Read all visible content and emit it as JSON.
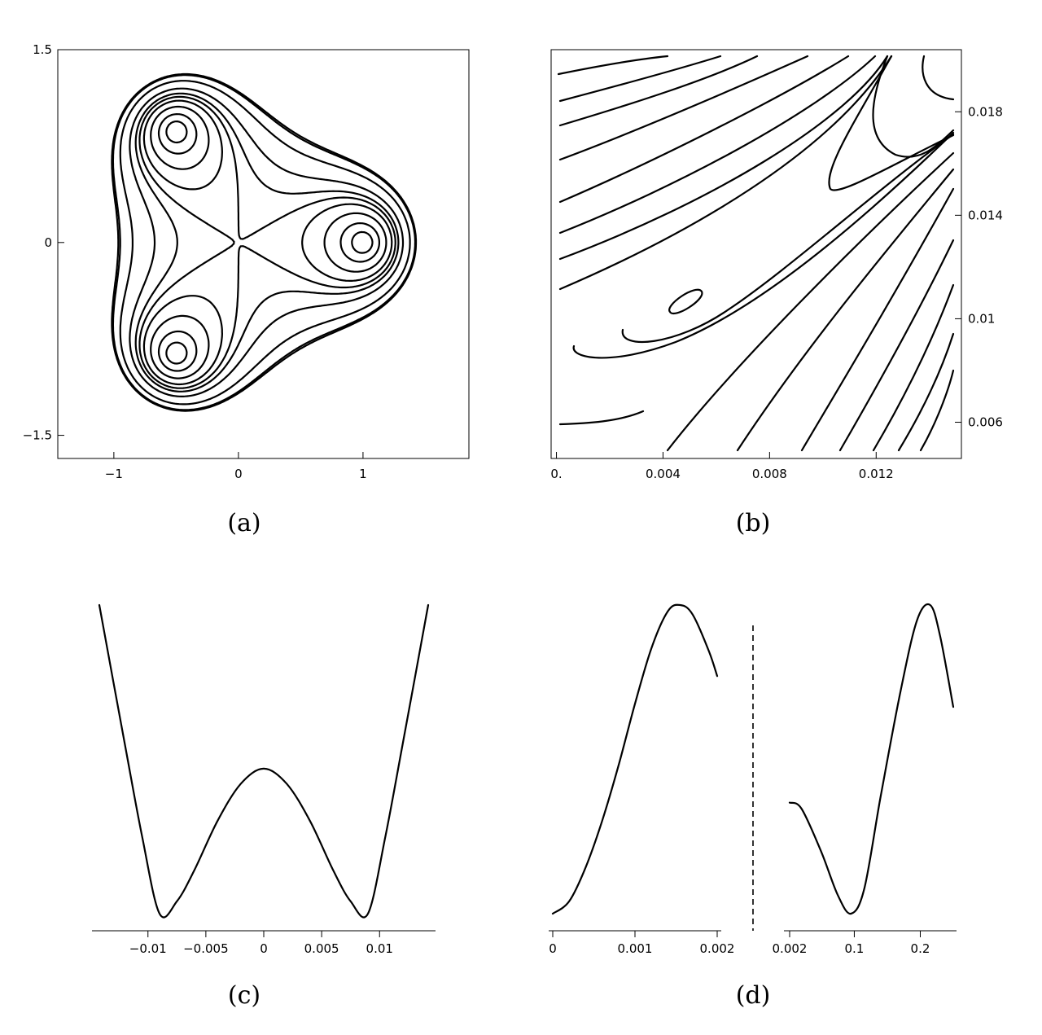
{
  "chart_data": [
    {
      "panel": "a",
      "type": "contour",
      "caption": "(a)",
      "xlim": [
        -1.45,
        1.85
      ],
      "ylim": [
        -1.68,
        1.5
      ],
      "xticks": [
        {
          "v": -1,
          "label": "−1"
        },
        {
          "v": 0,
          "label": "0"
        },
        {
          "v": 1,
          "label": "1"
        }
      ],
      "yticks": [
        {
          "v": -1.5,
          "label": "−1.5"
        },
        {
          "v": 0,
          "label": "0"
        },
        {
          "v": 1.5,
          "label": "1.5"
        }
      ],
      "grid": false,
      "minima": [
        [
          1,
          0
        ],
        [
          -0.5,
          0.866
        ],
        [
          -0.5,
          -0.866
        ]
      ],
      "description_level_count": 10
    },
    {
      "panel": "b",
      "type": "contour",
      "caption": "(b)",
      "xlim": [
        -0.0002,
        0.0152
      ],
      "ylim": [
        0.0046,
        0.0204
      ],
      "xticks": [
        {
          "v": 0,
          "label": "0."
        },
        {
          "v": 0.004,
          "label": "0.004"
        },
        {
          "v": 0.008,
          "label": "0.008"
        },
        {
          "v": 0.012,
          "label": "0.012"
        }
      ],
      "yticks": [
        {
          "v": 0.006,
          "label": "0.006"
        },
        {
          "v": 0.01,
          "label": "0.01"
        },
        {
          "v": 0.014,
          "label": "0.014"
        },
        {
          "v": 0.018,
          "label": "0.018"
        }
      ],
      "y_axis_side": "right",
      "grid": false
    },
    {
      "panel": "c",
      "type": "line",
      "caption": "(c)",
      "xlim": [
        -0.0142,
        0.0142
      ],
      "xticks": [
        {
          "v": -0.01,
          "label": "−0.01"
        },
        {
          "v": -0.005,
          "label": "−0.005"
        },
        {
          "v": 0,
          "label": "0"
        },
        {
          "v": 0.005,
          "label": "0.005"
        },
        {
          "v": 0.01,
          "label": "0.01"
        }
      ],
      "grid": false,
      "series": [
        {
          "x": [
            -0.0142,
            -0.012,
            -0.0105,
            -0.009,
            -0.0075,
            -0.006,
            -0.004,
            -0.002,
            0,
            0.002,
            0.004,
            0.006,
            0.0075,
            0.009,
            0.0105,
            0.012,
            0.0142
          ],
          "y": [
            1.0,
            0.55,
            0.25,
            0.0,
            0.04,
            0.14,
            0.3,
            0.42,
            0.47,
            0.42,
            0.3,
            0.14,
            0.04,
            0.0,
            0.25,
            0.55,
            1.0
          ]
        }
      ]
    },
    {
      "panel": "d-left",
      "type": "line",
      "caption": "(d)",
      "xlim": [
        0,
        0.002
      ],
      "xticks": [
        {
          "v": 0,
          "label": "0"
        },
        {
          "v": 0.001,
          "label": "0.001"
        },
        {
          "v": 0.002,
          "label": "0.002"
        }
      ],
      "grid": false,
      "series": [
        {
          "x": [
            0,
            0.0002,
            0.0004,
            0.0006,
            0.0008,
            0.001,
            0.0012,
            0.0014,
            0.00155,
            0.0017,
            0.0019,
            0.002
          ],
          "y": [
            0.0,
            0.04,
            0.15,
            0.3,
            0.48,
            0.68,
            0.86,
            0.98,
            1.0,
            0.97,
            0.85,
            0.77
          ]
        }
      ]
    },
    {
      "panel": "d-right",
      "type": "line",
      "xlim": [
        0.002,
        0.25
      ],
      "xticks": [
        {
          "v": 0.002,
          "label": "0.002"
        },
        {
          "v": 0.1,
          "label": "0.1"
        },
        {
          "v": 0.2,
          "label": "0.2"
        }
      ],
      "grid": false,
      "series": [
        {
          "x": [
            0.002,
            0.02,
            0.05,
            0.075,
            0.095,
            0.115,
            0.14,
            0.17,
            0.195,
            0.215,
            0.23,
            0.25
          ],
          "y": [
            0.36,
            0.34,
            0.2,
            0.06,
            0.0,
            0.08,
            0.38,
            0.72,
            0.95,
            1.0,
            0.9,
            0.67
          ]
        }
      ]
    }
  ]
}
